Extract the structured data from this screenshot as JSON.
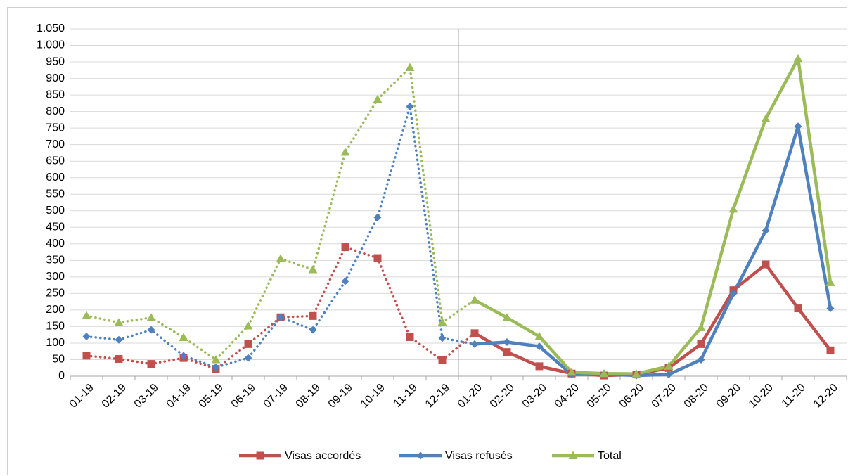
{
  "chart_data": {
    "type": "line",
    "categories": [
      "01-19",
      "02-19",
      "03-19",
      "04-19",
      "05-19",
      "06-19",
      "07-19",
      "08-19",
      "09-19",
      "10-19",
      "11-19",
      "12-19",
      "01-20",
      "02-20",
      "03-20",
      "04-20",
      "05-20",
      "06-20",
      "07-20",
      "08-20",
      "09-20",
      "10-20",
      "11-20",
      "12-20"
    ],
    "series": [
      {
        "name": "Visas accordés",
        "color": "#c0504d",
        "marker": "square",
        "values": [
          62,
          52,
          37,
          55,
          22,
          97,
          178,
          182,
          390,
          357,
          118,
          48,
          130,
          73,
          30,
          8,
          2,
          5,
          25,
          97,
          260,
          338,
          205,
          78
        ]
      },
      {
        "name": "Visas refusés",
        "color": "#4f81bd",
        "marker": "diamond",
        "values": [
          120,
          110,
          140,
          62,
          27,
          55,
          178,
          140,
          287,
          480,
          815,
          115,
          97,
          103,
          90,
          5,
          6,
          2,
          5,
          50,
          250,
          440,
          755,
          205
        ]
      },
      {
        "name": "Total",
        "color": "#9bbb59",
        "marker": "triangle",
        "values": [
          183,
          162,
          177,
          117,
          50,
          152,
          355,
          322,
          677,
          837,
          933,
          163,
          230,
          177,
          120,
          12,
          8,
          7,
          30,
          147,
          505,
          778,
          960,
          283
        ]
      }
    ],
    "ylim": [
      0,
      1050
    ],
    "yticks": [
      0,
      50,
      100,
      150,
      200,
      250,
      300,
      350,
      400,
      450,
      500,
      550,
      600,
      650,
      700,
      750,
      800,
      850,
      900,
      950,
      {
        "value": 1000,
        "label": "1.000"
      },
      {
        "value": 1050,
        "label": "1.050"
      }
    ],
    "grid": true,
    "legend": "bottom",
    "dotted_until": "01-20",
    "separator_after": "12-19"
  }
}
